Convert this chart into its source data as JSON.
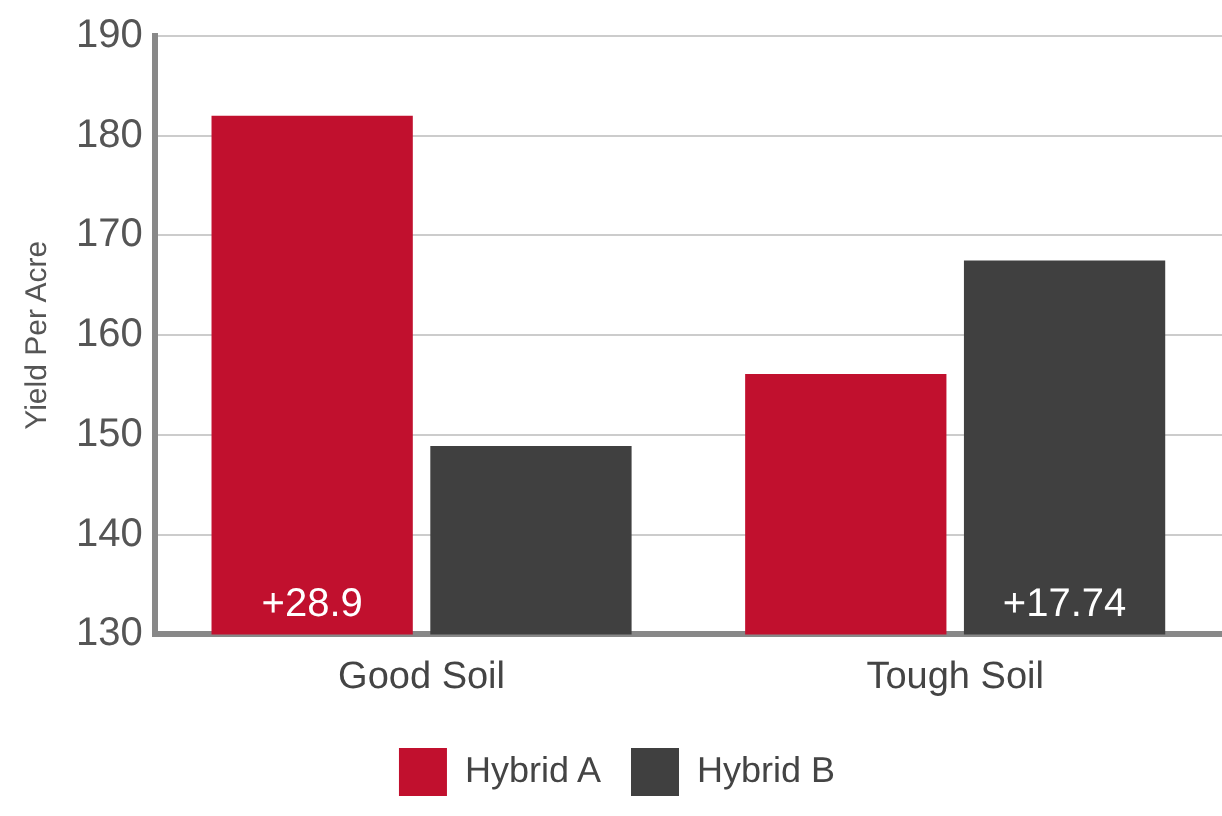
{
  "chart_data": {
    "type": "bar",
    "ylabel": "Yield Per Acre",
    "categories": [
      "Good Soil",
      "Tough Soil"
    ],
    "series": [
      {
        "name": "Hybrid A",
        "color": "#c1102e",
        "values": [
          182,
          156.1
        ]
      },
      {
        "name": "Hybrid B",
        "color": "#404040",
        "values": [
          148.9,
          167.5
        ]
      }
    ],
    "annotations": [
      {
        "text": "+28.9",
        "x": "Good Soil",
        "y": 133
      },
      {
        "text": "+17.74",
        "x": "Tough Soil",
        "y": 133
      }
    ],
    "ylim": [
      130,
      190
    ],
    "yticks": [
      130,
      140,
      150,
      160,
      170,
      180,
      190
    ],
    "grid": "y",
    "legend": "bottom"
  }
}
